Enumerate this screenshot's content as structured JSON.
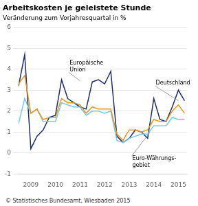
{
  "chart_data": {
    "type": "line",
    "title": "Arbeitskosten je geleistete Stunde",
    "subtitle": "Veränderung zum Vorjahresquartal in %",
    "footer": "© Statistisches Bundesamt, Wiesbaden 2015",
    "x": [
      2008.5,
      2008.75,
      2009,
      2009.25,
      2009.5,
      2009.75,
      2010,
      2010.25,
      2010.5,
      2010.75,
      2011,
      2011.25,
      2011.5,
      2011.75,
      2012,
      2012.25,
      2012.5,
      2012.75,
      2013,
      2013.25,
      2013.5,
      2013.75,
      2014,
      2014.25,
      2014.5,
      2014.75,
      2015,
      2015.25
    ],
    "series": [
      {
        "color": "#e8971e",
        "values": [
          3.3,
          3.7,
          1.9,
          2.1,
          1.6,
          1.7,
          1.7,
          2.6,
          2.4,
          2.4,
          2.3,
          1.9,
          2.2,
          2.1,
          2.1,
          2.1,
          0.9,
          0.6,
          1.1,
          1.1,
          1.0,
          1.1,
          1.6,
          1.5,
          1.5,
          2.0,
          2.3,
          1.9
        ]
      },
      {
        "color": "#72c8e8",
        "values": [
          1.4,
          2.6,
          1.9,
          2.1,
          1.5,
          1.5,
          1.5,
          2.4,
          2.3,
          2.2,
          2.2,
          1.8,
          2.0,
          2.0,
          1.9,
          2.0,
          0.6,
          0.5,
          0.7,
          0.8,
          0.9,
          0.9,
          1.3,
          1.3,
          1.3,
          1.7,
          1.6,
          1.6
        ]
      },
      {
        "color": "#1e2d6b",
        "values": [
          3.2,
          4.7,
          0.2,
          0.8,
          1.1,
          1.7,
          1.8,
          3.5,
          2.6,
          2.4,
          2.2,
          2.1,
          3.4,
          3.5,
          3.3,
          3.9,
          0.8,
          0.5,
          0.7,
          1.1,
          1.0,
          0.7,
          2.6,
          1.6,
          1.5,
          2.2,
          3.0,
          2.5
        ]
      }
    ],
    "xlim": [
      2008.5,
      2015.35
    ],
    "xticks": [
      2009,
      2010,
      2011,
      2012,
      2013,
      2014,
      2015
    ],
    "ylim": [
      -1,
      6
    ],
    "yticks": [
      -1,
      0,
      1,
      2,
      3,
      4,
      5,
      6
    ],
    "grid": true,
    "annotations": [
      {
        "text": "Europäische\nUnion",
        "x": 2011.0,
        "y": 3.45,
        "text_x": 2010.55,
        "text_y": 3.85
      },
      {
        "text": "Deutschland",
        "x": 2015.0,
        "y": 2.5,
        "text_x": 2014.05,
        "text_y": 3.2
      },
      {
        "text": "Euro-Währungs-\ngebiet",
        "x": 2013.85,
        "y": 1.0,
        "text_x": 2013.1,
        "text_y": -0.15
      }
    ]
  }
}
